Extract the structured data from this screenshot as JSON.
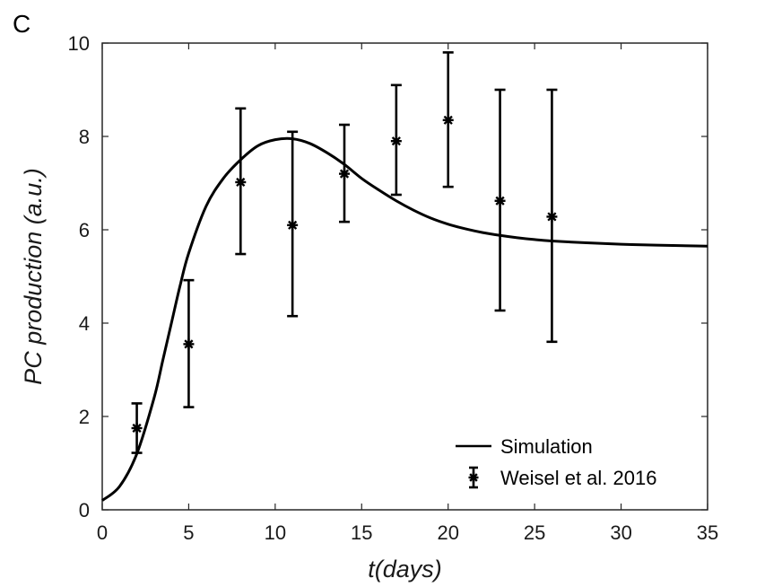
{
  "panel_label": "C",
  "chart_data": {
    "type": "line",
    "xlabel": "t(days)",
    "ylabel": "PC production (a.u.)",
    "xlim": [
      0,
      35
    ],
    "ylim": [
      0,
      10
    ],
    "xticks": [
      0,
      5,
      10,
      15,
      20,
      25,
      30,
      35
    ],
    "yticks": [
      0,
      2,
      4,
      6,
      8,
      10
    ],
    "grid": false,
    "legend_position": "bottom-right",
    "series": [
      {
        "name": "Simulation",
        "kind": "line",
        "color": "#000000",
        "x": [
          0,
          1,
          2,
          3,
          3.5,
          4,
          4.5,
          5,
          6,
          7,
          8,
          9,
          10,
          11,
          12,
          13,
          14,
          15,
          16,
          17,
          18,
          19,
          20,
          21,
          22,
          23,
          24,
          25,
          26,
          28,
          30,
          32,
          35
        ],
        "y": [
          0.2,
          0.5,
          1.2,
          2.4,
          3.2,
          4.0,
          4.8,
          5.5,
          6.5,
          7.1,
          7.5,
          7.8,
          7.93,
          7.95,
          7.85,
          7.65,
          7.4,
          7.1,
          6.85,
          6.62,
          6.42,
          6.25,
          6.12,
          6.02,
          5.94,
          5.88,
          5.83,
          5.79,
          5.76,
          5.72,
          5.69,
          5.67,
          5.65
        ]
      },
      {
        "name": "Weisel et al. 2016",
        "kind": "errorbar",
        "color": "#000000",
        "x": [
          2,
          5,
          8,
          11,
          14,
          17,
          20,
          23,
          26
        ],
        "y": [
          1.75,
          3.55,
          7.02,
          6.1,
          7.2,
          7.9,
          8.35,
          6.62,
          6.28
        ],
        "lower": [
          1.22,
          2.2,
          5.48,
          4.15,
          6.17,
          6.75,
          6.92,
          4.27,
          3.6
        ],
        "upper": [
          2.28,
          4.92,
          8.6,
          8.1,
          8.25,
          9.1,
          9.8,
          9.0,
          9.0
        ]
      }
    ]
  }
}
